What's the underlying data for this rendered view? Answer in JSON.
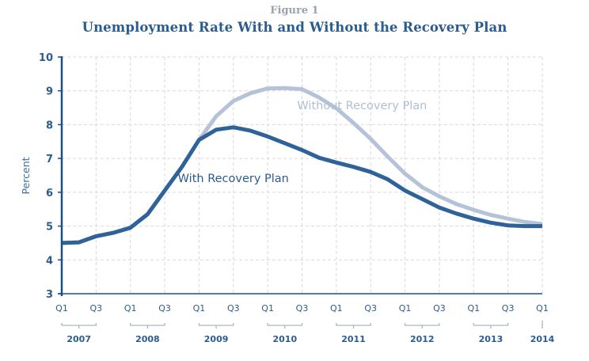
{
  "figure_label": "Figure 1",
  "chart_data": {
    "type": "line",
    "title": "Unemployment Rate With and Without the Recovery Plan",
    "xlabel": "",
    "ylabel": "Percent",
    "ylim": [
      3,
      10
    ],
    "yticks": [
      3,
      4,
      5,
      6,
      7,
      8,
      9,
      10
    ],
    "grid": true,
    "x": [
      "2007 Q1",
      "2007 Q2",
      "2007 Q3",
      "2007 Q4",
      "2008 Q1",
      "2008 Q2",
      "2008 Q3",
      "2008 Q4",
      "2009 Q1",
      "2009 Q2",
      "2009 Q3",
      "2009 Q4",
      "2010 Q1",
      "2010 Q2",
      "2010 Q3",
      "2010 Q4",
      "2011 Q1",
      "2011 Q2",
      "2011 Q3",
      "2011 Q4",
      "2012 Q1",
      "2012 Q2",
      "2012 Q3",
      "2012 Q4",
      "2013 Q1",
      "2013 Q2",
      "2013 Q3",
      "2013 Q4",
      "2014 Q1"
    ],
    "quarter_tick_labels": [
      {
        "index": 0,
        "label": "Q1"
      },
      {
        "index": 2,
        "label": "Q3"
      },
      {
        "index": 4,
        "label": "Q1"
      },
      {
        "index": 6,
        "label": "Q3"
      },
      {
        "index": 8,
        "label": "Q1"
      },
      {
        "index": 10,
        "label": "Q3"
      },
      {
        "index": 12,
        "label": "Q1"
      },
      {
        "index": 14,
        "label": "Q3"
      },
      {
        "index": 16,
        "label": "Q1"
      },
      {
        "index": 18,
        "label": "Q3"
      },
      {
        "index": 20,
        "label": "Q1"
      },
      {
        "index": 22,
        "label": "Q3"
      },
      {
        "index": 24,
        "label": "Q1"
      },
      {
        "index": 26,
        "label": "Q3"
      },
      {
        "index": 28,
        "label": "Q1"
      }
    ],
    "year_labels": [
      {
        "label": "2007",
        "from": 0,
        "to": 2
      },
      {
        "label": "2008",
        "from": 4,
        "to": 6
      },
      {
        "label": "2009",
        "from": 8,
        "to": 10
      },
      {
        "label": "2010",
        "from": 12,
        "to": 14
      },
      {
        "label": "2011",
        "from": 16,
        "to": 18
      },
      {
        "label": "2012",
        "from": 20,
        "to": 22
      },
      {
        "label": "2013",
        "from": 24,
        "to": 26
      },
      {
        "label": "2014",
        "from": 28,
        "to": 28
      }
    ],
    "series": [
      {
        "name": "Without Recovery Plan",
        "color": "#b5c3d8",
        "label_anchor": {
          "index": 17.5,
          "value": 8.45
        },
        "values": [
          4.5,
          4.52,
          4.7,
          4.8,
          4.95,
          5.35,
          6.05,
          6.75,
          7.55,
          8.25,
          8.7,
          8.93,
          9.07,
          9.08,
          9.05,
          8.8,
          8.48,
          8.05,
          7.58,
          7.05,
          6.55,
          6.15,
          5.88,
          5.65,
          5.48,
          5.33,
          5.22,
          5.12,
          5.06
        ]
      },
      {
        "name": "With Recovery Plan",
        "color": "#2e6299",
        "label_anchor": {
          "index": 10,
          "value": 6.3
        },
        "values": [
          4.5,
          4.52,
          4.7,
          4.8,
          4.95,
          5.35,
          6.05,
          6.75,
          7.55,
          7.85,
          7.92,
          7.82,
          7.65,
          7.45,
          7.25,
          7.02,
          6.88,
          6.75,
          6.6,
          6.38,
          6.05,
          5.8,
          5.55,
          5.37,
          5.22,
          5.1,
          5.02,
          5.0,
          5.0
        ]
      }
    ]
  },
  "colors": {
    "axis": "#1c4f82",
    "grid": "#d9d9d9",
    "text": "#2b5c8f",
    "bracket": "#a9b6c6"
  }
}
